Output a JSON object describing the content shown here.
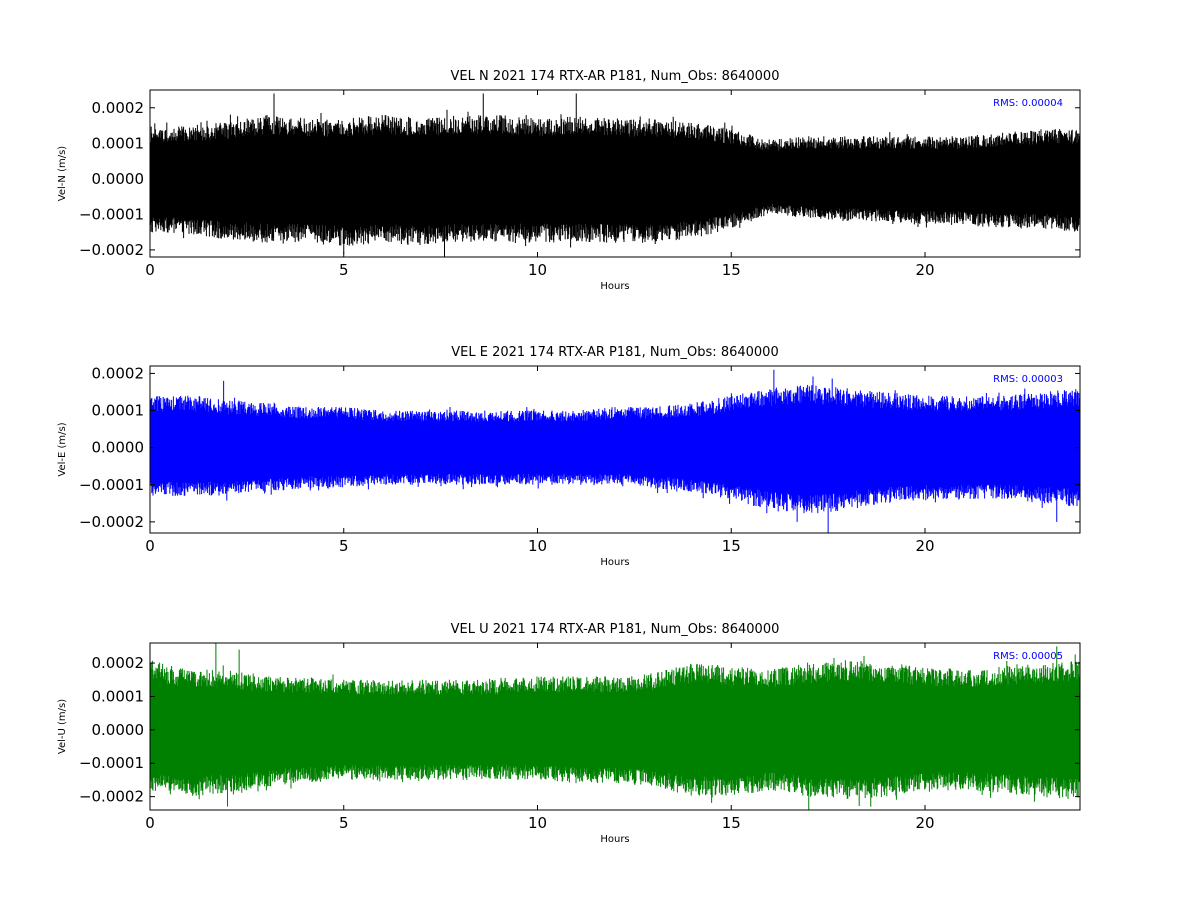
{
  "chart_data": [
    {
      "type": "line",
      "title": "VEL N 2021 174 RTX-AR  P181, Num_Obs: 8640000",
      "xlabel": "Hours",
      "ylabel": "Vel-N (m/s)",
      "xlim": [
        0,
        24
      ],
      "ylim": [
        -0.00022,
        0.00025
      ],
      "xticks": [
        0,
        5,
        10,
        15,
        20
      ],
      "xtick_labels": [
        "0",
        "5",
        "10",
        "15",
        "20"
      ],
      "yticks": [
        -0.0002,
        -0.0001,
        0.0,
        0.0001,
        0.0002
      ],
      "ytick_labels": [
        "−0.0002",
        "−0.0001",
        "0.0000",
        "0.0001",
        "0.0002"
      ],
      "annotation": "RMS:  0.00004",
      "annotation_color": "#0000ff",
      "series_color": "#000000",
      "series": [
        {
          "x": [
            0,
            1,
            2,
            3,
            4,
            5,
            6,
            7,
            8,
            9,
            10,
            11,
            12,
            13,
            14,
            15,
            16,
            17,
            18,
            19,
            20,
            21,
            22,
            23,
            24
          ],
          "y_upper": [
            0.00014,
            0.00015,
            0.00016,
            0.00018,
            0.00017,
            0.00017,
            0.00018,
            0.00017,
            0.00018,
            0.00018,
            0.00017,
            0.00018,
            0.00017,
            0.00017,
            0.00016,
            0.00014,
            0.00011,
            0.00012,
            0.00012,
            0.00012,
            0.00012,
            0.00012,
            0.00013,
            0.00014,
            0.00014
          ],
          "y_lower": [
            -0.00015,
            -0.00016,
            -0.00017,
            -0.00018,
            -0.00018,
            -0.00019,
            -0.00018,
            -0.00019,
            -0.00018,
            -0.00018,
            -0.00018,
            -0.00018,
            -0.00018,
            -0.00018,
            -0.00017,
            -0.00014,
            -0.0001,
            -0.00011,
            -0.00012,
            -0.00012,
            -0.00013,
            -0.00013,
            -0.00014,
            -0.00014,
            -0.00015
          ],
          "spikes": [
            [
              3.2,
              0.00024
            ],
            [
              8.6,
              0.00024
            ],
            [
              11.0,
              0.00024
            ],
            [
              5.0,
              -0.00021
            ],
            [
              7.6,
              -0.00022
            ]
          ]
        }
      ]
    },
    {
      "type": "line",
      "title": "VEL E 2021 174 RTX-AR  P181, Num_Obs: 8640000",
      "xlabel": "Hours",
      "ylabel": "Vel-E (m/s)",
      "xlim": [
        0,
        24
      ],
      "ylim": [
        -0.00023,
        0.00022
      ],
      "xticks": [
        0,
        5,
        10,
        15,
        20
      ],
      "xtick_labels": [
        "0",
        "5",
        "10",
        "15",
        "20"
      ],
      "yticks": [
        -0.0002,
        -0.0001,
        0.0,
        0.0001,
        0.0002
      ],
      "ytick_labels": [
        "−0.0002",
        "−0.0001",
        "0.0000",
        "0.0001",
        "0.0002"
      ],
      "annotation": "RMS:  0.00003",
      "annotation_color": "#0000ff",
      "series_color": "#0000ff",
      "series": [
        {
          "x": [
            0,
            1,
            2,
            3,
            4,
            5,
            6,
            7,
            8,
            9,
            10,
            11,
            12,
            13,
            14,
            15,
            16,
            17,
            18,
            19,
            20,
            21,
            22,
            23,
            24
          ],
          "y_upper": [
            0.00014,
            0.00014,
            0.00013,
            0.00012,
            0.00011,
            0.00011,
            0.0001,
            0.0001,
            0.0001,
            0.0001,
            0.0001,
            0.0001,
            0.00011,
            0.00011,
            0.00012,
            0.00014,
            0.00016,
            0.00017,
            0.00016,
            0.00015,
            0.00014,
            0.00014,
            0.00014,
            0.00015,
            0.00016
          ],
          "y_lower": [
            -0.00013,
            -0.00013,
            -0.00013,
            -0.00012,
            -0.00011,
            -0.00011,
            -0.0001,
            -0.0001,
            -0.0001,
            -0.0001,
            -0.0001,
            -0.0001,
            -0.0001,
            -0.00011,
            -0.00012,
            -0.00014,
            -0.00017,
            -0.00018,
            -0.00017,
            -0.00015,
            -0.00014,
            -0.00014,
            -0.00014,
            -0.00015,
            -0.00016
          ],
          "spikes": [
            [
              1.9,
              0.00018
            ],
            [
              16.1,
              0.00021
            ],
            [
              17.5,
              -0.00023
            ],
            [
              16.7,
              -0.0002
            ],
            [
              23.4,
              -0.0002
            ]
          ]
        }
      ]
    },
    {
      "type": "line",
      "title": "VEL U 2021 174 RTX-AR  P181, Num_Obs: 8640000",
      "xlabel": "Hours",
      "ylabel": "Vel-U (m/s)",
      "xlim": [
        0,
        24
      ],
      "ylim": [
        -0.00024,
        0.00026
      ],
      "xticks": [
        0,
        5,
        10,
        15,
        20
      ],
      "xtick_labels": [
        "0",
        "5",
        "10",
        "15",
        "20"
      ],
      "yticks": [
        -0.0002,
        -0.0001,
        0.0,
        0.0001,
        0.0002
      ],
      "ytick_labels": [
        "−0.0002",
        "−0.0001",
        "0.0000",
        "0.0001",
        "0.0002"
      ],
      "annotation": "RMS:  0.00005",
      "annotation_color": "#0000ff",
      "series_color": "#008000",
      "series": [
        {
          "x": [
            0,
            1,
            2,
            3,
            4,
            5,
            6,
            7,
            8,
            9,
            10,
            11,
            12,
            13,
            14,
            15,
            16,
            17,
            18,
            19,
            20,
            21,
            22,
            23,
            24
          ],
          "y_upper": [
            0.00021,
            0.00018,
            0.00018,
            0.00016,
            0.00016,
            0.00015,
            0.00015,
            0.00015,
            0.00015,
            0.00015,
            0.00016,
            0.00016,
            0.00016,
            0.00017,
            0.0002,
            0.00019,
            0.00018,
            0.0002,
            0.00021,
            0.0002,
            0.00019,
            0.00018,
            0.00019,
            0.0002,
            0.00021
          ],
          "y_lower": [
            -0.00019,
            -0.0002,
            -0.00019,
            -0.00017,
            -0.00016,
            -0.00015,
            -0.00015,
            -0.00015,
            -0.00015,
            -0.00015,
            -0.00015,
            -0.00016,
            -0.00016,
            -0.00017,
            -0.0002,
            -0.0002,
            -0.00018,
            -0.0002,
            -0.00021,
            -0.0002,
            -0.00018,
            -0.00018,
            -0.00019,
            -0.0002,
            -0.00021
          ],
          "spikes": [
            [
              1.7,
              0.00026
            ],
            [
              2.3,
              0.00024
            ],
            [
              23.4,
              0.00025
            ],
            [
              2.0,
              -0.00023
            ],
            [
              17.0,
              -0.00024
            ],
            [
              18.6,
              -0.00023
            ]
          ]
        }
      ]
    }
  ]
}
